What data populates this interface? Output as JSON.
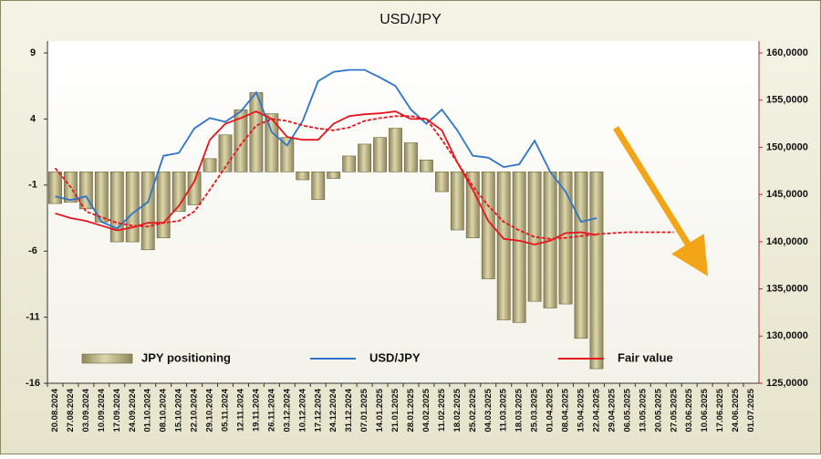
{
  "chart_data": {
    "type": "bar_line",
    "title": "USD/JPY",
    "categories": [
      "20.08.2024",
      "27.08.2024",
      "03.09.2024",
      "10.09.2024",
      "17.09.2024",
      "24.09.2024",
      "01.10.2024",
      "08.10.2024",
      "15.10.2024",
      "22.10.2024",
      "29.10.2024",
      "05.11.2024",
      "12.11.2024",
      "19.11.2024",
      "26.11.2024",
      "03.12.2024",
      "10.12.2024",
      "17.12.2024",
      "24.12.2024",
      "31.12.2024",
      "07.01.2025",
      "14.01.2025",
      "21.01.2025",
      "28.01.2025",
      "04.02.2025",
      "11.02.2025",
      "18.02.2025",
      "25.02.2025",
      "04.03.2025",
      "11.03.2025",
      "18.03.2025",
      "25.03.2025",
      "01.04.2025",
      "08.04.2025",
      "15.04.2025",
      "22.04.2025",
      "29.04.2025",
      "06.05.2025",
      "13.05.2025",
      "20.05.2025",
      "27.05.2025",
      "03.06.2025",
      "10.06.2025",
      "17.06.2025",
      "24.06.2025",
      "01.07.2025"
    ],
    "series": [
      {
        "name": "JPY positioning",
        "type": "bar",
        "color": "#b5ad7c",
        "values": [
          -2.4,
          -2.3,
          -2.8,
          -3.8,
          -5.3,
          -5.3,
          -5.9,
          -5.0,
          -3.0,
          -2.5,
          1.0,
          2.8,
          4.7,
          6.0,
          4.4,
          2.6,
          -0.6,
          -2.1,
          -0.5,
          1.2,
          2.1,
          2.6,
          3.3,
          2.2,
          0.9,
          -1.5,
          -4.4,
          -5.0,
          -8.1,
          -11.2,
          -11.4,
          -9.8,
          -10.3,
          -10.0,
          -12.6,
          -14.9,
          null,
          null,
          null,
          null,
          null,
          null,
          null,
          null,
          null,
          null
        ]
      },
      {
        "name": "USD/JPY",
        "type": "line",
        "axis": "y2",
        "color": "#2e75c8",
        "values": [
          144.8,
          144.4,
          144.8,
          142.1,
          141.4,
          143.0,
          144.2,
          149.1,
          149.4,
          152.0,
          153.1,
          152.7,
          153.8,
          155.8,
          151.6,
          150.2,
          152.8,
          157.0,
          158.0,
          158.2,
          158.2,
          157.4,
          156.5,
          154.0,
          152.5,
          154.0,
          151.8,
          149.1,
          148.9,
          147.9,
          148.2,
          150.7,
          147.4,
          145.3,
          142.1,
          142.5,
          null,
          null,
          null,
          null,
          null,
          null,
          null,
          null,
          null,
          null
        ]
      },
      {
        "name": "Fair value",
        "type": "line",
        "axis": "y2",
        "color": "#e8141c",
        "values": [
          143.0,
          142.5,
          142.2,
          141.7,
          141.2,
          141.5,
          142.0,
          142.0,
          143.8,
          146.4,
          150.8,
          152.5,
          153.1,
          153.8,
          153.0,
          151.1,
          150.8,
          150.8,
          152.5,
          153.3,
          153.5,
          153.6,
          153.8,
          153.0,
          153.0,
          151.8,
          148.4,
          145.5,
          142.2,
          140.3,
          140.1,
          139.7,
          140.1,
          140.9,
          141.0,
          140.7,
          null,
          null,
          null,
          null,
          null,
          null,
          null,
          null,
          null,
          null
        ]
      },
      {
        "type": "line",
        "dashed": true,
        "axis": "y2",
        "color": "#e8141c",
        "values": [
          147.8,
          145.8,
          143.2,
          142.6,
          142.0,
          141.7,
          141.6,
          142.0,
          142.2,
          143.2,
          145.5,
          147.9,
          150.3,
          152.3,
          153.0,
          152.8,
          152.3,
          152.0,
          151.8,
          152.1,
          152.8,
          153.1,
          153.3,
          153.3,
          153.0,
          150.8,
          148.4,
          145.9,
          143.8,
          142.1,
          141.2,
          140.5,
          140.3,
          140.4,
          140.6,
          140.8,
          140.9,
          141.0,
          141.0,
          141.0,
          141.0,
          null,
          null,
          null,
          null,
          null
        ]
      }
    ],
    "ylim": [
      -16,
      9
    ],
    "yticks": [
      9,
      4,
      -1,
      -6,
      -11,
      -16
    ],
    "y2lim": [
      125,
      160
    ],
    "y2ticks": [
      {
        "value": 160,
        "label": "160,0000"
      },
      {
        "value": 155,
        "label": "155,0000"
      },
      {
        "value": 150,
        "label": "150,0000"
      },
      {
        "value": 145,
        "label": "145,0000"
      },
      {
        "value": 140,
        "label": "140,0000"
      },
      {
        "value": 135,
        "label": "135,0000"
      },
      {
        "value": 130,
        "label": "130,0000"
      },
      {
        "value": 125,
        "label": "125,0000"
      }
    ],
    "grid": false
  }
}
